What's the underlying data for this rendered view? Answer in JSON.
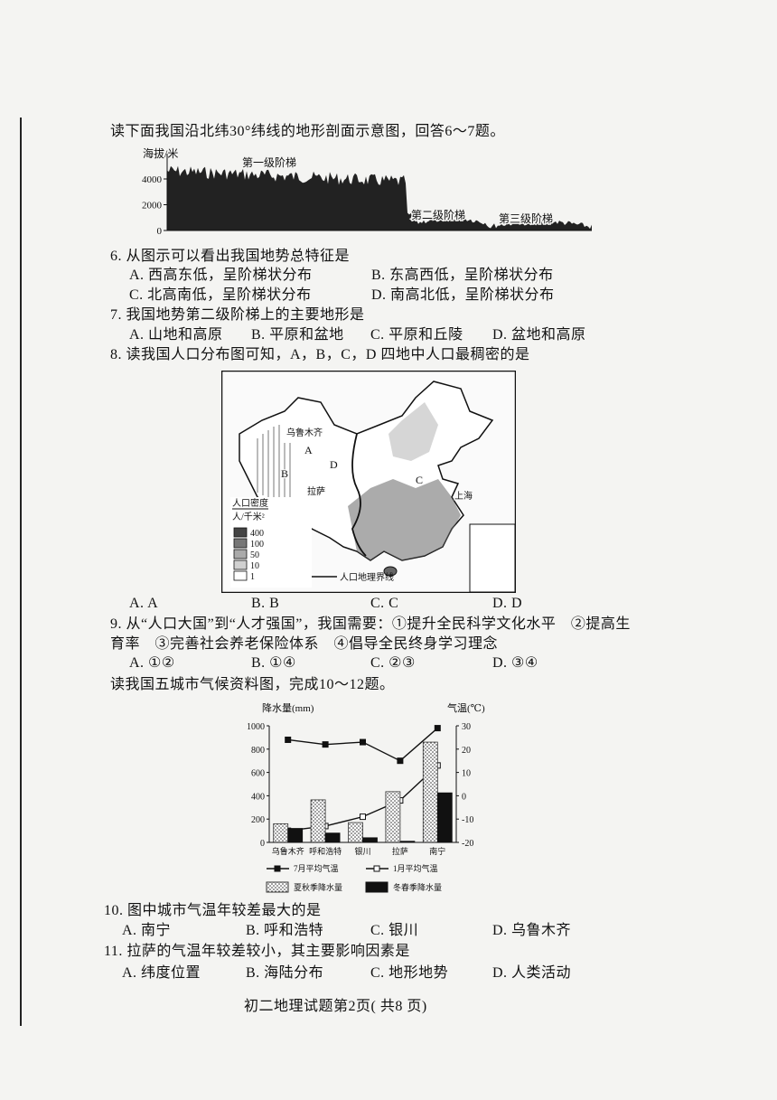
{
  "intro_1": "读下面我国沿北纬30°纬线的地形剖面示意图，回答6～7题。",
  "profile": {
    "y_axis_title": "海拔/米",
    "yticks": [
      4000,
      2000,
      0
    ],
    "step_labels": [
      "第一级阶梯",
      "第二级阶梯",
      "第三级阶梯"
    ]
  },
  "questions": [
    {
      "stem": "6. 从图示可以看出我国地势总特征是",
      "options": [
        "A. 西高东低，呈阶梯状分布",
        "B. 东高西低，呈阶梯状分布",
        "C. 北高南低，呈阶梯状分布",
        "D. 南高北低，呈阶梯状分布"
      ]
    },
    {
      "stem": "7. 我国地势第二级阶梯上的主要地形是",
      "options": [
        "A. 山地和高原",
        "B. 平原和盆地",
        "C. 平原和丘陵",
        "D. 盆地和高原"
      ]
    },
    {
      "stem": "8. 读我国人口分布图可知，A，B，C，D 四地中人口最稠密的是",
      "options": [
        "A. A",
        "B. B",
        "C. C",
        "D. D"
      ]
    },
    {
      "stem": "9. 从“人口大国”到“人才强国”，我国需要：①提升全民科学文化水平　②提高生育率　③完善社会养老保险体系　④倡导全民终身学习理念",
      "options": [
        "A. ①②",
        "B. ①④",
        "C. ②③",
        "D. ③④"
      ]
    },
    {
      "stem": "10. 图中城市气温年较差最大的是",
      "options": [
        "A. 南宁",
        "B. 呼和浩特",
        "C. 银川",
        "D. 乌鲁木齐"
      ]
    },
    {
      "stem": "11. 拉萨的气温年较差较小，其主要影响因素是",
      "options": [
        "A. 纬度位置",
        "B. 海陆分布",
        "C. 地形地势",
        "D. 人类活动"
      ]
    }
  ],
  "population_map": {
    "place_labels": [
      "乌鲁木齐",
      "A",
      "B",
      "C",
      "D",
      "拉萨",
      "上海"
    ],
    "legend_title": "人口密度",
    "legend_unit": "人/千米²",
    "legend_levels": [
      400,
      100,
      50,
      10,
      1
    ],
    "boundary_label": "人口地理界线"
  },
  "intro_2": "读我国五城市气候资料图，完成10～12题。",
  "climate_chart": {
    "type": "combo",
    "y_axis_title": "降水量(mm)",
    "y2_axis_title": "气温(℃)",
    "categories": [
      "乌鲁木齐",
      "呼和浩特",
      "银川",
      "拉萨",
      "南宁"
    ],
    "ylim": [
      0,
      1000
    ],
    "yticks": [
      0,
      200,
      400,
      600,
      800,
      1000
    ],
    "y2lim": [
      -20,
      30
    ],
    "y2ticks": [
      -20,
      -10,
      0,
      10,
      20,
      30
    ],
    "series": [
      {
        "name": "7月平均气温",
        "type": "line",
        "axis": "y2",
        "color": "#111111",
        "marker": "filled-square",
        "values": [
          24,
          22,
          23,
          15,
          29
        ]
      },
      {
        "name": "1月平均气温",
        "type": "line",
        "axis": "y2",
        "color": "#111111",
        "marker": "open-square",
        "values": [
          -15,
          -13,
          -9,
          -2,
          13
        ]
      },
      {
        "name": "夏秋季降水量",
        "type": "bar",
        "color": "#333333",
        "fill": "dotted",
        "values": [
          160,
          365,
          170,
          435,
          860
        ]
      },
      {
        "name": "冬春季降水量",
        "type": "bar",
        "color": "#111111",
        "fill": "solid",
        "values": [
          120,
          80,
          40,
          10,
          425
        ]
      }
    ]
  },
  "footer": "初二地理试题第2页( 共8 页)"
}
